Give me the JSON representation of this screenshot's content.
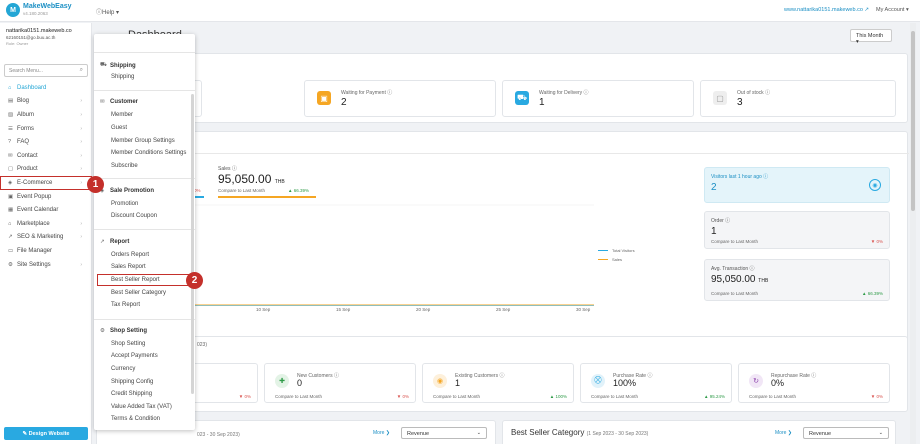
{
  "header": {
    "logo_mark": "M",
    "logo_name": "MakeWebEasy",
    "logo_version": "v4.180.2063",
    "help": "Help ▾",
    "site_link": "www.nattarika0151.makeweb.co",
    "account": "My Account ▾"
  },
  "user": {
    "name": "nattarika0151.makeweb.co",
    "email": "62160151@go.buu.ac.th",
    "role": "Role: Owner"
  },
  "search": {
    "placeholder": "Search Menu..."
  },
  "sidebar": {
    "items": [
      {
        "label": "Dashboard",
        "icon": "home-icon",
        "glyph": "⌂"
      },
      {
        "label": "Blog",
        "icon": "doc-icon",
        "glyph": "▤"
      },
      {
        "label": "Album",
        "icon": "image-icon",
        "glyph": "▨"
      },
      {
        "label": "Forms",
        "icon": "list-icon",
        "glyph": "☰"
      },
      {
        "label": "FAQ",
        "icon": "question-icon",
        "glyph": "?"
      },
      {
        "label": "Contact",
        "icon": "mail-icon",
        "glyph": "✉"
      },
      {
        "label": "Product",
        "icon": "box-icon",
        "glyph": "▢"
      },
      {
        "label": "E-Commerce",
        "icon": "tag-icon",
        "glyph": "◈"
      },
      {
        "label": "Event Popup",
        "icon": "popup-icon",
        "glyph": "▣"
      },
      {
        "label": "Event Calendar",
        "icon": "calendar-icon",
        "glyph": "▦"
      },
      {
        "label": "Marketplace",
        "icon": "store-icon",
        "glyph": "⌂"
      },
      {
        "label": "SEO & Marketing",
        "icon": "chart-icon",
        "glyph": "↗"
      },
      {
        "label": "File Manager",
        "icon": "folder-icon",
        "glyph": "▭"
      },
      {
        "label": "Site Settings",
        "icon": "gear-icon",
        "glyph": "⚙"
      }
    ],
    "design_button": "✎ Design Website"
  },
  "dashboard": {
    "title": "Dashboard",
    "period": "This Month ▾",
    "order_stats": [
      {
        "label": "Waiting for Payment ⓘ",
        "value": "2",
        "icon": "wallet-icon",
        "color": "#f5a623",
        "glyph": "▣"
      },
      {
        "label": "Waiting for Delivery ⓘ",
        "value": "1",
        "icon": "truck-icon",
        "color": "#29a9e1",
        "glyph": "⛟"
      },
      {
        "label": "Out of stock ⓘ",
        "value": "3",
        "icon": "box-icon",
        "color": "#999999",
        "glyph": "▢"
      }
    ],
    "sales": {
      "label": "Sales ⓘ",
      "value": "95,050.00",
      "unit": "THB",
      "compare": "Compare to Last Month",
      "change": "▲ 66.39%",
      "prev_change": "0%"
    },
    "legend": {
      "visitors": "Total Visitors",
      "sales": "Sales"
    },
    "x_ticks": [
      "10 Sep",
      "15 Sep",
      "20 Sep",
      "25 Sep",
      "30 Sep"
    ],
    "visitors_card": {
      "label": "Visitors last 1 hour ago ⓘ",
      "value": "2"
    },
    "order_card": {
      "label": "Order ⓘ",
      "value": "1",
      "compare": "Compare to Last Month",
      "change": "▼ 0%"
    },
    "avg_card": {
      "label": "Avg. Transaction ⓘ",
      "value": "95,050.00",
      "unit": "THB",
      "compare": "Compare to Last Month",
      "change": "▲ 66.39%"
    },
    "customer_range": "023)",
    "customer_stats": [
      {
        "label": "",
        "value": "",
        "compare": "",
        "change": "▼ 0%",
        "icon": "",
        "color": "#ffffff",
        "glyph": ""
      },
      {
        "label": "New Customers ⓘ",
        "value": "0",
        "compare": "Compare to Last Month",
        "change": "▼ 0%",
        "icon": "user-add-icon",
        "color": "#2e9b48",
        "glyph": "✚"
      },
      {
        "label": "Existing Customers ⓘ",
        "value": "1",
        "compare": "Compare to Last Month",
        "change": "▲ 100%",
        "icon": "user-icon",
        "color": "#f5a623",
        "glyph": "◉"
      },
      {
        "label": "Purchase Rate ⓘ",
        "value": "100%",
        "compare": "Compare to Last Month",
        "change": "▲ 95.24%",
        "icon": "cart-icon",
        "color": "#29a9e1",
        "glyph": "⛒"
      },
      {
        "label": "Repurchase Rate ⓘ",
        "value": "0%",
        "compare": "Compare to Last Month",
        "change": "▼ 0%",
        "icon": "repeat-icon",
        "color": "#8e44ad",
        "glyph": "↻"
      }
    ],
    "bottom_left": {
      "title_partial": "023 - 30 Sep 2023)",
      "more": "More ❯",
      "select": "Revenue"
    },
    "bottom_right": {
      "title": "Best Seller Category",
      "range": "(1 Sep 2023 - 30 Sep 2023)",
      "more": "More ❯",
      "select": "Revenue"
    }
  },
  "dropdown": {
    "sections": [
      {
        "title": "Shipping",
        "icon": "truck-icon",
        "glyph": "⛟",
        "items": [
          "Shipping"
        ]
      },
      {
        "title": "Customer",
        "icon": "mail-icon",
        "glyph": "✉",
        "items": [
          "Member",
          "Guest",
          "Member Group Settings",
          "Member Conditions Settings",
          "Subscribe"
        ]
      },
      {
        "title": "Sale Promotion",
        "icon": "tag-icon",
        "glyph": "◈",
        "items": [
          "Promotion",
          "Discount Coupon"
        ]
      },
      {
        "title": "Report",
        "icon": "chart-icon",
        "glyph": "↗",
        "items": [
          "Orders Report",
          "Sales Report",
          "Best Seller Report",
          "Best Seller Category",
          "Tax Report"
        ]
      },
      {
        "title": "Shop Setting",
        "icon": "gear-icon",
        "glyph": "⚙",
        "items": [
          "Shop Setting",
          "Accept Payments",
          "Currency",
          "Shipping Config",
          "Credit Shipping",
          "Value Added Tax (VAT)",
          "Terms & Condition"
        ]
      }
    ]
  },
  "annotations": {
    "step1": "1",
    "step2": "2"
  },
  "colors": {
    "accent": "#23a6d5",
    "annotation": "#c4302b",
    "up": "#2e9b48",
    "down": "#d9534f"
  }
}
